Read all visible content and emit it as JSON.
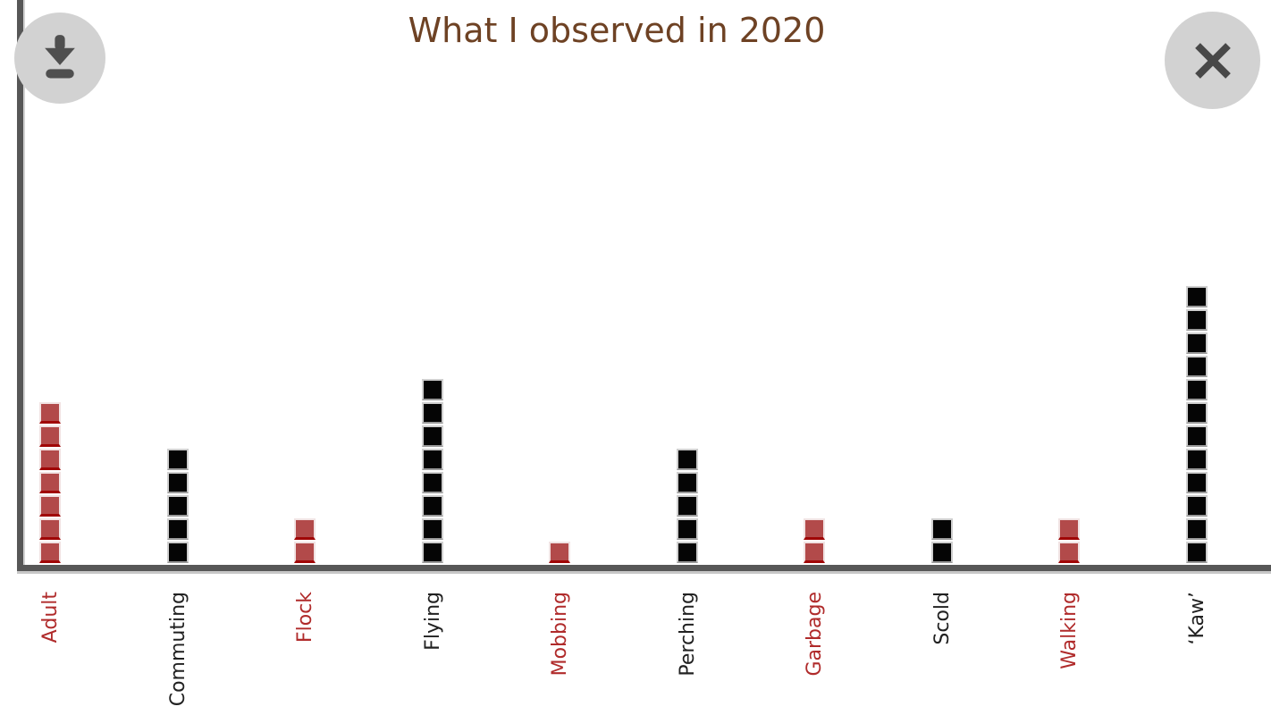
{
  "chart": {
    "title": "What I observed in 2020"
  },
  "toolbar": {
    "icons": [
      "download-icon",
      "close-icon"
    ]
  },
  "chart_data": {
    "type": "bar",
    "subtype": "unit-square-stack",
    "title": "What I observed in 2020",
    "categories": [
      "Adult",
      "Commuting",
      "Flock",
      "Flying",
      "Mobbing",
      "Perching",
      "Garbage",
      "Scold",
      "Walking",
      "‘Kaw’"
    ],
    "values": [
      7,
      5,
      2,
      8,
      1,
      5,
      2,
      2,
      2,
      12
    ],
    "colors": [
      "red",
      "black",
      "red",
      "black",
      "red",
      "black",
      "red",
      "black",
      "red",
      "black"
    ],
    "xlabel": "",
    "ylabel": "",
    "ylim": [
      0,
      12
    ],
    "grid": false,
    "legend": false,
    "palette": {
      "red_fill": "#b24a4a",
      "red_edge": "#f1e3e3",
      "red_bottom": "#a00606",
      "red_label": "#b02b2b",
      "black_fill": "#050505",
      "black_edge": "#cfcfcf",
      "black_bottom": "#9a9a9a",
      "black_label": "#212121",
      "title_color": "#6e4224",
      "axis_color": "#575757",
      "button_bg": "#d2d2d2",
      "icon_color": "#4f4f4f"
    }
  }
}
